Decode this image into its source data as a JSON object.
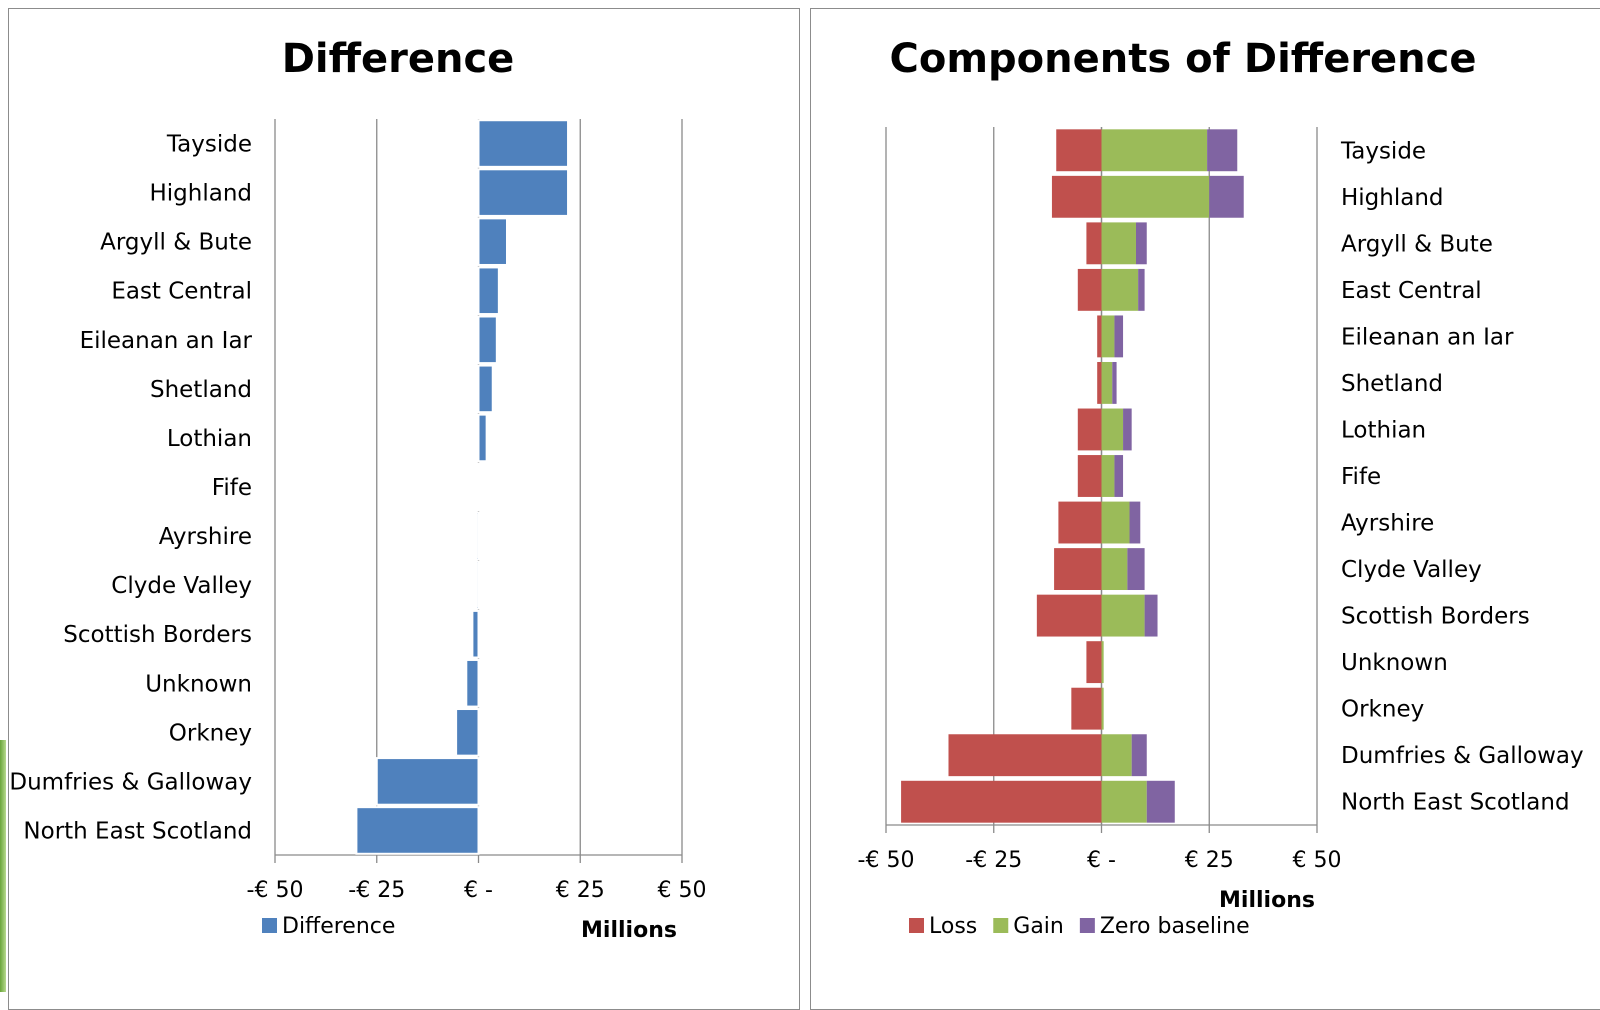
{
  "chart_data": [
    {
      "type": "bar",
      "orientation": "horizontal",
      "title": "Difference",
      "categories": [
        "Tayside",
        "Highland",
        "Argyll & Bute",
        "East Central",
        "Eileanan an Iar",
        "Shetland",
        "Lothian",
        "Fife",
        "Ayrshire",
        "Clyde Valley",
        "Scottish Borders",
        "Unknown",
        "Orkney",
        "Dumfries & Galloway",
        "North East Scotland"
      ],
      "series": [
        {
          "name": "Difference",
          "color": "#4f81bd",
          "values": [
            22,
            22,
            7,
            5,
            4.5,
            3.5,
            2,
            0,
            -0.5,
            -0.5,
            -1.5,
            -3,
            -5.5,
            -25,
            -30
          ]
        }
      ],
      "xlim": [
        -50,
        50
      ],
      "xticks": [
        -50,
        -25,
        0,
        25,
        50
      ],
      "xtick_labels": [
        "-€ 50",
        "-€ 25",
        "€ -",
        "€ 25",
        "€ 50"
      ],
      "xlabel": "Millions",
      "grid": "vertical",
      "legend": "bottom-left"
    },
    {
      "type": "bar",
      "orientation": "horizontal",
      "stacked": true,
      "title": "Components of Difference",
      "categories": [
        "Tayside",
        "Highland",
        "Argyll & Bute",
        "East Central",
        "Eileanan an Iar",
        "Shetland",
        "Lothian",
        "Fife",
        "Ayrshire",
        "Clyde Valley",
        "Scottish Borders",
        "Unknown",
        "Orkney",
        "Dumfries & Galloway",
        "North East Scotland"
      ],
      "series": [
        {
          "name": "Loss",
          "color": "#c0504d",
          "values": [
            -10.5,
            -11.5,
            -3.5,
            -5.5,
            -1,
            -1,
            -5.5,
            -5.5,
            -10,
            -11,
            -15,
            -3.5,
            -7,
            -35.5,
            -46.5
          ]
        },
        {
          "name": "Gain",
          "color": "#9bbb59",
          "values": [
            24.5,
            25,
            8,
            8.5,
            3,
            2.5,
            5,
            3,
            6.5,
            6,
            10,
            0.5,
            0.5,
            7,
            10.5
          ]
        },
        {
          "name": "Zero baseline",
          "color": "#8064a2",
          "values": [
            7,
            8,
            2.5,
            1.5,
            2,
            1,
            2,
            2,
            2.5,
            4,
            3,
            0,
            0,
            3.5,
            6.5
          ]
        }
      ],
      "xlim": [
        -50,
        50
      ],
      "xticks": [
        -50,
        -25,
        0,
        25,
        50
      ],
      "xtick_labels": [
        "-€ 50",
        "-€ 25",
        "€ -",
        "€ 25",
        "€ 50"
      ],
      "xlabel": "Millions",
      "grid": "vertical",
      "legend": "bottom"
    }
  ]
}
